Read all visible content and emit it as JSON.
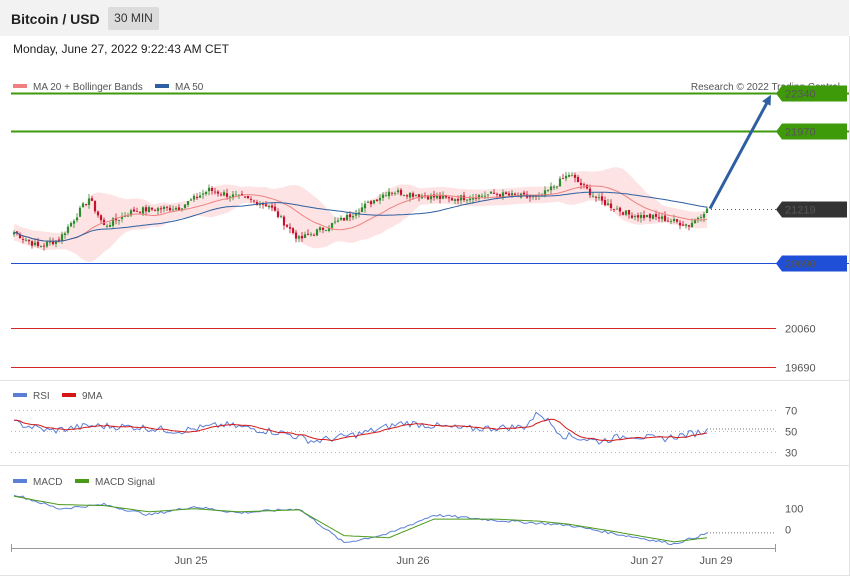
{
  "header": {
    "title": "Bitcoin / USD",
    "timeframe": "30 MIN",
    "datetime": "Monday, June 27, 2022 9:22:43 AM CET"
  },
  "colors": {
    "ma20": "#f08080",
    "ma50": "#2e5fa0",
    "bollinger_fill": "#fde3e3",
    "candle_up": "#2e8b2e",
    "candle_down": "#c8102e",
    "resistance": "#3f9a0a",
    "pivot": "#1f4fd6",
    "support": "#d62728",
    "rsi": "#5b7fd6",
    "rsi_ma": "#d41818",
    "macd": "#5b7fd6",
    "macd_signal": "#4a9a1a"
  },
  "chart_data": [
    {
      "panel": "price",
      "type": "candlestick",
      "legend": [
        {
          "name": "MA 20 + Bollinger Bands",
          "color": "#f08080"
        },
        {
          "name": "MA 50",
          "color": "#2e5fa0"
        }
      ],
      "credit": "Research © 2022 Trading Central",
      "ylim": [
        19560,
        22560
      ],
      "levels": [
        {
          "value": 22340,
          "label": "22340",
          "kind": "resistance"
        },
        {
          "value": 21970,
          "label": "21970",
          "kind": "resistance"
        },
        {
          "value": 21219,
          "label": "21219",
          "kind": "current"
        },
        {
          "value": 20690,
          "label": "20690",
          "kind": "pivot"
        },
        {
          "value": 20060,
          "label": "20060",
          "kind": "support"
        },
        {
          "value": 19690,
          "label": "19690",
          "kind": "support"
        }
      ],
      "close_anchors": [
        [
          0,
          20990
        ],
        [
          8,
          20850
        ],
        [
          15,
          20920
        ],
        [
          25,
          21320
        ],
        [
          30,
          21050
        ],
        [
          40,
          21200
        ],
        [
          55,
          21230
        ],
        [
          65,
          21400
        ],
        [
          85,
          21250
        ],
        [
          95,
          20920
        ],
        [
          110,
          21120
        ],
        [
          125,
          21390
        ],
        [
          145,
          21310
        ],
        [
          160,
          21360
        ],
        [
          175,
          21320
        ],
        [
          185,
          21550
        ],
        [
          195,
          21300
        ],
        [
          205,
          21160
        ],
        [
          215,
          21130
        ],
        [
          225,
          21060
        ],
        [
          231,
          21219
        ]
      ],
      "projection": {
        "from": 21219,
        "to": 22340
      }
    },
    {
      "panel": "rsi",
      "type": "line",
      "legend": [
        {
          "name": "RSI",
          "color": "#5b7fd6"
        },
        {
          "name": "9MA",
          "color": "#d41818"
        }
      ],
      "ylim": [
        20,
        80
      ],
      "ticks": [
        70,
        50,
        30
      ],
      "rsi_anchors": [
        [
          0,
          58
        ],
        [
          12,
          50
        ],
        [
          25,
          55
        ],
        [
          40,
          54
        ],
        [
          55,
          50
        ],
        [
          70,
          56
        ],
        [
          90,
          48
        ],
        [
          100,
          40
        ],
        [
          115,
          47
        ],
        [
          130,
          58
        ],
        [
          150,
          52
        ],
        [
          170,
          54
        ],
        [
          175,
          68
        ],
        [
          183,
          46
        ],
        [
          195,
          40
        ],
        [
          205,
          46
        ],
        [
          215,
          42
        ],
        [
          231,
          50
        ]
      ]
    },
    {
      "panel": "macd",
      "type": "line",
      "legend": [
        {
          "name": "MACD",
          "color": "#5b7fd6"
        },
        {
          "name": "MACD Signal",
          "color": "#4a9a1a"
        }
      ],
      "ylim": [
        -80,
        200
      ],
      "ticks": [
        100,
        0
      ],
      "macd_anchors": [
        [
          0,
          170
        ],
        [
          15,
          100
        ],
        [
          30,
          120
        ],
        [
          45,
          70
        ],
        [
          60,
          110
        ],
        [
          75,
          80
        ],
        [
          95,
          100
        ],
        [
          110,
          -65
        ],
        [
          125,
          -20
        ],
        [
          140,
          70
        ],
        [
          160,
          45
        ],
        [
          175,
          30
        ],
        [
          185,
          20
        ],
        [
          200,
          -20
        ],
        [
          220,
          -70
        ],
        [
          231,
          -20
        ]
      ],
      "signal_anchors": [
        [
          0,
          160
        ],
        [
          15,
          120
        ],
        [
          30,
          115
        ],
        [
          45,
          85
        ],
        [
          60,
          100
        ],
        [
          75,
          85
        ],
        [
          95,
          95
        ],
        [
          110,
          -30
        ],
        [
          125,
          -40
        ],
        [
          140,
          50
        ],
        [
          160,
          50
        ],
        [
          175,
          40
        ],
        [
          185,
          25
        ],
        [
          200,
          -10
        ],
        [
          220,
          -60
        ],
        [
          231,
          -40
        ]
      ]
    }
  ],
  "x_axis": {
    "labels": [
      {
        "text": "Jun 25",
        "idx": 59
      },
      {
        "text": "Jun 26",
        "idx": 133
      },
      {
        "text": "Jun 27",
        "idx": 211
      },
      {
        "text": "Jun 29",
        "idx": 234
      }
    ]
  }
}
